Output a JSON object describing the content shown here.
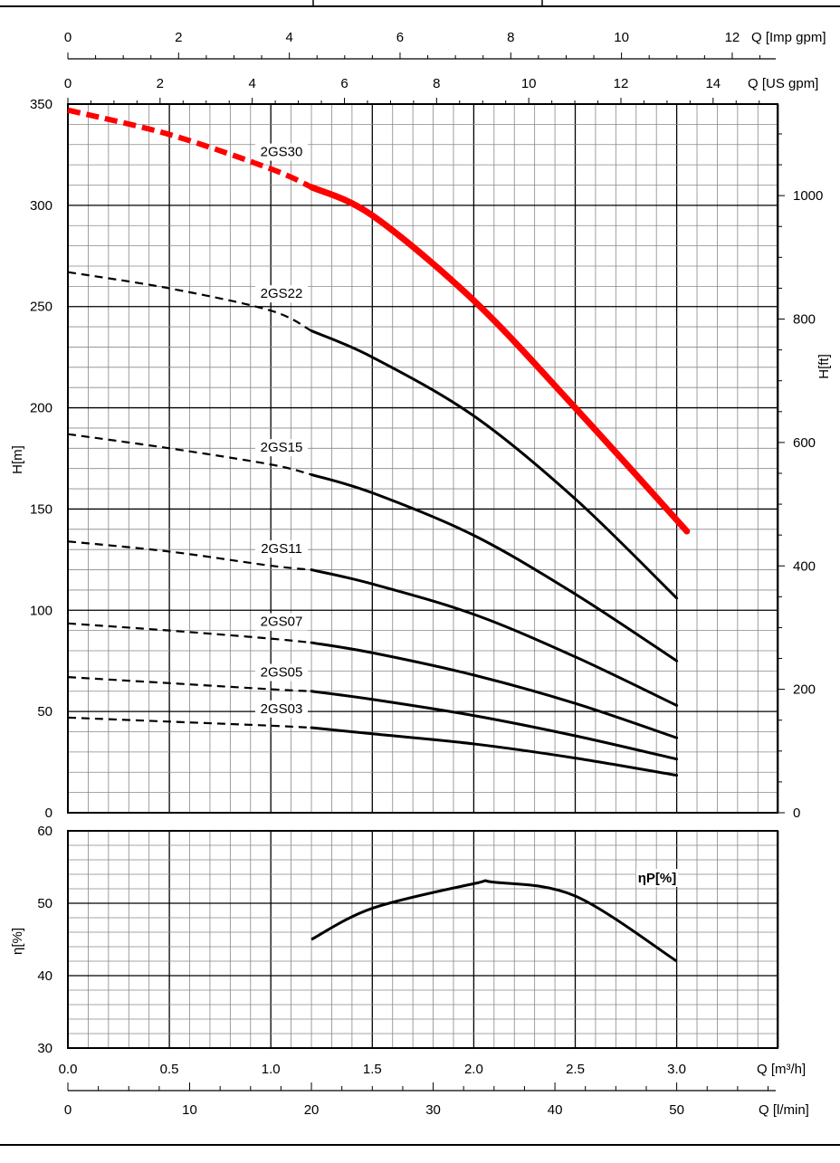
{
  "chart_data": [
    {
      "type": "line",
      "panel": "head",
      "x_axis": {
        "label": "Q [m³/h]",
        "range": [
          0,
          3.5
        ],
        "ticks": [
          "0.0",
          "0.5",
          "1.0",
          "1.5",
          "2.0",
          "2.5",
          "3.0"
        ]
      },
      "secondary_x_axes": [
        {
          "label": "Q [Imp gpm]",
          "ticks": [
            "0",
            "2",
            "4",
            "6",
            "8",
            "10",
            "12"
          ],
          "position": "top"
        },
        {
          "label": "Q [US gpm]",
          "ticks": [
            "0",
            "2",
            "4",
            "6",
            "8",
            "10",
            "12",
            "14"
          ],
          "position": "top"
        },
        {
          "label": "Q [l/min]",
          "ticks": [
            "0",
            "10",
            "20",
            "30",
            "40",
            "50"
          ],
          "position": "bottom"
        }
      ],
      "y_axis": {
        "label": "H[m]",
        "range": [
          0,
          350
        ],
        "ticks": [
          "0",
          "50",
          "100",
          "150",
          "200",
          "250",
          "300",
          "350"
        ]
      },
      "y2_axis": {
        "label": "H[ft]",
        "ticks": [
          "0",
          "200",
          "400",
          "600",
          "800",
          "1000"
        ]
      },
      "grid": true,
      "series": [
        {
          "name": "2GS30",
          "color": "#ff0000",
          "dashed_x": [
            0,
            0.5,
            1.0,
            1.2
          ],
          "dashed_y": [
            347,
            335,
            318,
            309
          ],
          "x": [
            1.2,
            1.5,
            2.0,
            2.5,
            3.05
          ],
          "y": [
            309,
            295,
            253,
            200,
            139
          ]
        },
        {
          "name": "2GS22",
          "color": "#000000",
          "dashed_x": [
            0,
            0.5,
            1.0,
            1.2
          ],
          "dashed_y": [
            267,
            259,
            248,
            238
          ],
          "x": [
            1.2,
            1.5,
            2.0,
            2.5,
            3.0
          ],
          "y": [
            238,
            225,
            196,
            155,
            106
          ]
        },
        {
          "name": "2GS15",
          "color": "#000000",
          "dashed_x": [
            0,
            0.5,
            1.0,
            1.2
          ],
          "dashed_y": [
            187,
            180,
            172,
            167
          ],
          "x": [
            1.2,
            1.5,
            2.0,
            2.5,
            3.0
          ],
          "y": [
            167,
            158,
            137,
            108,
            75
          ]
        },
        {
          "name": "2GS11",
          "color": "#000000",
          "dashed_x": [
            0,
            0.5,
            1.0,
            1.2
          ],
          "dashed_y": [
            134,
            129,
            122,
            120
          ],
          "x": [
            1.2,
            1.5,
            2.0,
            2.5,
            3.0
          ],
          "y": [
            120,
            113,
            98,
            77,
            53
          ]
        },
        {
          "name": "2GS07",
          "color": "#000000",
          "dashed_x": [
            0,
            0.5,
            1.0,
            1.2
          ],
          "dashed_y": [
            93.5,
            90,
            86,
            84
          ],
          "x": [
            1.2,
            1.5,
            2.0,
            2.5,
            3.0
          ],
          "y": [
            84,
            79,
            68,
            54,
            37
          ]
        },
        {
          "name": "2GS05",
          "color": "#000000",
          "dashed_x": [
            0,
            0.5,
            1.0,
            1.2
          ],
          "dashed_y": [
            67,
            64,
            61,
            60
          ],
          "x": [
            1.2,
            1.5,
            2.0,
            2.5,
            3.0
          ],
          "y": [
            60,
            56,
            48,
            38,
            26.5
          ]
        },
        {
          "name": "2GS03",
          "color": "#000000",
          "dashed_x": [
            0,
            0.5,
            1.0,
            1.2
          ],
          "dashed_y": [
            47,
            45,
            43,
            42
          ],
          "x": [
            1.2,
            1.5,
            2.0,
            2.5,
            3.0
          ],
          "y": [
            42,
            39,
            34,
            27,
            18.5
          ]
        }
      ]
    },
    {
      "type": "line",
      "panel": "efficiency",
      "x_axis": {
        "range": [
          0,
          3.5
        ]
      },
      "y_axis": {
        "label": "η[%]",
        "range": [
          30,
          60
        ],
        "ticks": [
          "30",
          "40",
          "50",
          "60"
        ]
      },
      "grid": true,
      "series": [
        {
          "name": "ηP[%]",
          "color": "#000000",
          "x": [
            1.2,
            1.5,
            2.0,
            2.1,
            2.5,
            3.0
          ],
          "y": [
            45,
            49.3,
            52.7,
            52.9,
            51,
            42
          ]
        }
      ]
    }
  ]
}
